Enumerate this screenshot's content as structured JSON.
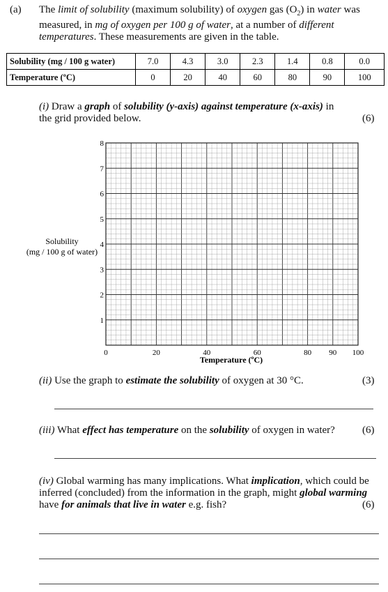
{
  "intro": {
    "label": "(a)",
    "parts": [
      {
        "t": "The ",
        "s": "n"
      },
      {
        "t": "limit of solubility",
        "s": "i"
      },
      {
        "t": " (maximum solubility) of ",
        "s": "n"
      },
      {
        "t": "oxygen",
        "s": "i"
      },
      {
        "t": " gas (O",
        "s": "n"
      },
      {
        "t": "2",
        "s": "sub"
      },
      {
        "t": ") in ",
        "s": "n"
      },
      {
        "t": "water",
        "s": "i"
      },
      {
        "t": " was measured, in ",
        "s": "n"
      },
      {
        "t": "mg of oxygen per 100 g of water",
        "s": "i"
      },
      {
        "t": ", at a number of ",
        "s": "n"
      },
      {
        "t": "different temperatures",
        "s": "i"
      },
      {
        "t": ". These measurements are given in the table.",
        "s": "n"
      }
    ]
  },
  "table": {
    "rows": [
      {
        "header": "Solubility (mg / 100 g water)",
        "cells": [
          "7.0",
          "4.3",
          "3.0",
          "2.3",
          "1.4",
          "0.8",
          "0.0"
        ]
      },
      {
        "header": "Temperature (ºC)",
        "cells": [
          "0",
          "20",
          "40",
          "60",
          "80",
          "90",
          "100"
        ]
      }
    ]
  },
  "q1": {
    "label": "(i)",
    "parts": [
      {
        "t": " Draw a ",
        "s": "n"
      },
      {
        "t": "graph",
        "s": "bi"
      },
      {
        "t": " of ",
        "s": "n"
      },
      {
        "t": "solubility (y-axis) against temperature (x-axis)",
        "s": "bi"
      },
      {
        "t": " in the grid provided below.",
        "s": "n"
      }
    ],
    "marks": "(6)"
  },
  "graph": {
    "ylabel_line1": "Solubility",
    "ylabel_line2": "(mg / 100 g of water)",
    "xlabel": "Temperature (ºC)",
    "y_ticks": [
      "0",
      "1",
      "2",
      "3",
      "4",
      "5",
      "6",
      "7",
      "8"
    ],
    "x_ticks": [
      {
        "label": "20",
        "value": 20
      },
      {
        "label": "40",
        "value": 40
      },
      {
        "label": "60",
        "value": 60
      },
      {
        "label": "80",
        "value": 80
      },
      {
        "label": "90",
        "value": 90
      },
      {
        "label": "100",
        "value": 100
      }
    ],
    "x_range": [
      0,
      100
    ],
    "y_range": [
      0,
      8
    ]
  },
  "q2": {
    "label": "(ii)",
    "parts": [
      {
        "t": " Use the graph to ",
        "s": "n"
      },
      {
        "t": "estimate the solubility",
        "s": "bi"
      },
      {
        "t": " of oxygen at 30 °C.",
        "s": "n"
      }
    ],
    "marks": "(3)"
  },
  "q3": {
    "label": "(iii)",
    "parts": [
      {
        "t": " What ",
        "s": "n"
      },
      {
        "t": "effect has temperature",
        "s": "bi"
      },
      {
        "t": " on the ",
        "s": "n"
      },
      {
        "t": "solubility",
        "s": "bi"
      },
      {
        "t": " of oxygen in water?",
        "s": "n"
      }
    ],
    "marks": "(6)"
  },
  "q4": {
    "label": "(iv)",
    "parts": [
      {
        "t": " Global warming has many implications. What ",
        "s": "n"
      },
      {
        "t": "implication",
        "s": "bi"
      },
      {
        "t": ", which could be inferred (concluded) from the information in the graph, might ",
        "s": "n"
      },
      {
        "t": "global warming",
        "s": "bi"
      },
      {
        "t": " have ",
        "s": "n"
      },
      {
        "t": "for animals that live in water",
        "s": "bi"
      },
      {
        "t": " e.g. fish?",
        "s": "n"
      }
    ],
    "marks": "(6)"
  }
}
